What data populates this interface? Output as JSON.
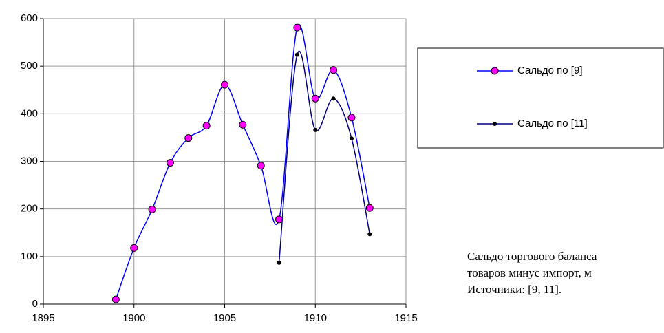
{
  "chart_data": {
    "type": "line",
    "series": [
      {
        "name": "Сальдо по [9]",
        "color": "#0000ff",
        "marker_color": "#ff00ff",
        "x": [
          1899,
          1900,
          1901,
          1902,
          1903,
          1904,
          1905,
          1906,
          1907,
          1908,
          1909,
          1910,
          1911,
          1912,
          1913
        ],
        "values": [
          10,
          118,
          199,
          297,
          349,
          375,
          461,
          377,
          291,
          178,
          581,
          432,
          492,
          392,
          202
        ]
      },
      {
        "name": "Сальдо по [11]",
        "color": "#000080",
        "marker_color": "#000000",
        "x": [
          1908,
          1909,
          1910,
          1911,
          1912,
          1913
        ],
        "values": [
          87,
          524,
          366,
          432,
          348,
          147
        ]
      }
    ],
    "xlim": [
      1895,
      1915
    ],
    "xticks": [
      1895,
      1900,
      1905,
      1910,
      1915
    ],
    "ylim": [
      0,
      600
    ],
    "yticks": [
      0,
      100,
      200,
      300,
      400,
      500,
      600
    ],
    "grid": true,
    "legend": "right",
    "annotation": [
      "Сальдо торгового баланса",
      "товаров минус импорт, м",
      "Источники: [9, 11]."
    ]
  }
}
